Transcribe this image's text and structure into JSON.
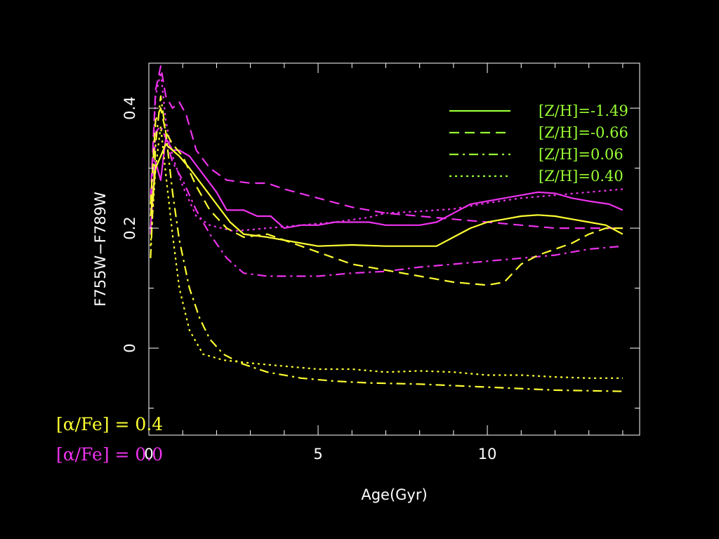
{
  "chart_data": {
    "type": "line",
    "title": "",
    "xlabel": "Age(Gyr)",
    "ylabel": "F755W−F789W",
    "xlim": [
      0,
      14.5
    ],
    "ylim": [
      -0.145,
      0.475
    ],
    "x_ticks": [
      {
        "value": 0,
        "label": "0"
      },
      {
        "value": 5,
        "label": "5"
      },
      {
        "value": 10,
        "label": "10"
      }
    ],
    "y_ticks": [
      {
        "value": 0,
        "label": "0"
      },
      {
        "value": 0.2,
        "label": "0.2"
      },
      {
        "value": 0.4,
        "label": "0.4"
      }
    ],
    "grid": false,
    "legend_position": "top-right",
    "legend": [
      {
        "label": "[Z/H]=-1.49",
        "dash": "solid"
      },
      {
        "label": "[Z/H]=-0.66",
        "dash": "dashed"
      },
      {
        "label": "[Z/H]=0.06",
        "dash": "dashdot"
      },
      {
        "label": "[Z/H]=0.40",
        "dash": "dotted"
      }
    ],
    "legend_color": "#99ff33",
    "alpha_groups": [
      {
        "label": "[α/Fe] = 0.4",
        "color": "#ffff33"
      },
      {
        "label": "[α/Fe] = 0.0",
        "color": "#ee33ee"
      }
    ],
    "series": [
      {
        "alpha_fe": 0.0,
        "z_h": -1.49,
        "dash": "solid",
        "color": "#ee33ee",
        "points": [
          [
            0.05,
            0.2
          ],
          [
            0.2,
            0.31
          ],
          [
            0.35,
            0.28
          ],
          [
            0.5,
            0.35
          ],
          [
            0.7,
            0.33
          ],
          [
            0.9,
            0.33
          ],
          [
            1.2,
            0.32
          ],
          [
            1.6,
            0.29
          ],
          [
            2.0,
            0.26
          ],
          [
            2.3,
            0.23
          ],
          [
            2.6,
            0.23
          ],
          [
            2.8,
            0.23
          ],
          [
            3.2,
            0.22
          ],
          [
            3.6,
            0.22
          ],
          [
            4.0,
            0.2
          ],
          [
            4.5,
            0.205
          ],
          [
            5.0,
            0.205
          ],
          [
            5.5,
            0.21
          ],
          [
            6.0,
            0.21
          ],
          [
            6.5,
            0.21
          ],
          [
            7.0,
            0.205
          ],
          [
            8.0,
            0.205
          ],
          [
            8.5,
            0.21
          ],
          [
            9.0,
            0.225
          ],
          [
            9.5,
            0.24
          ],
          [
            10.0,
            0.245
          ],
          [
            10.5,
            0.25
          ],
          [
            11.0,
            0.255
          ],
          [
            11.5,
            0.26
          ],
          [
            12.0,
            0.258
          ],
          [
            12.5,
            0.25
          ],
          [
            13.0,
            0.245
          ],
          [
            13.6,
            0.24
          ],
          [
            14.0,
            0.23
          ]
        ]
      },
      {
        "alpha_fe": 0.0,
        "z_h": -0.66,
        "dash": "dashed",
        "color": "#ee33ee",
        "points": [
          [
            0.05,
            0.25
          ],
          [
            0.2,
            0.43
          ],
          [
            0.35,
            0.47
          ],
          [
            0.5,
            0.42
          ],
          [
            0.7,
            0.4
          ],
          [
            0.9,
            0.41
          ],
          [
            1.1,
            0.39
          ],
          [
            1.4,
            0.33
          ],
          [
            1.8,
            0.3
          ],
          [
            2.3,
            0.28
          ],
          [
            3.0,
            0.275
          ],
          [
            3.5,
            0.275
          ],
          [
            4.0,
            0.265
          ],
          [
            5.0,
            0.25
          ],
          [
            6.0,
            0.235
          ],
          [
            7.0,
            0.225
          ],
          [
            8.0,
            0.22
          ],
          [
            9.0,
            0.215
          ],
          [
            10.0,
            0.21
          ],
          [
            11.0,
            0.205
          ],
          [
            12.0,
            0.2
          ],
          [
            13.0,
            0.2
          ],
          [
            14.0,
            0.2
          ]
        ]
      },
      {
        "alpha_fe": 0.0,
        "z_h": 0.06,
        "dash": "dashdot",
        "color": "#ee33ee",
        "points": [
          [
            0.05,
            0.19
          ],
          [
            0.2,
            0.36
          ],
          [
            0.35,
            0.37
          ],
          [
            0.5,
            0.35
          ],
          [
            0.7,
            0.31
          ],
          [
            1.0,
            0.28
          ],
          [
            1.4,
            0.23
          ],
          [
            1.8,
            0.19
          ],
          [
            2.3,
            0.15
          ],
          [
            2.8,
            0.125
          ],
          [
            3.5,
            0.12
          ],
          [
            4.0,
            0.12
          ],
          [
            5.0,
            0.12
          ],
          [
            6.0,
            0.125
          ],
          [
            7.0,
            0.128
          ],
          [
            8.0,
            0.135
          ],
          [
            9.0,
            0.14
          ],
          [
            10.0,
            0.145
          ],
          [
            11.0,
            0.15
          ],
          [
            12.0,
            0.155
          ],
          [
            13.0,
            0.165
          ],
          [
            14.0,
            0.17
          ]
        ]
      },
      {
        "alpha_fe": 0.0,
        "z_h": 0.4,
        "dash": "dotted",
        "color": "#ee33ee",
        "points": [
          [
            0.05,
            0.23
          ],
          [
            0.2,
            0.42
          ],
          [
            0.35,
            0.46
          ],
          [
            0.5,
            0.38
          ],
          [
            0.7,
            0.32
          ],
          [
            1.0,
            0.27
          ],
          [
            1.4,
            0.22
          ],
          [
            1.8,
            0.205
          ],
          [
            2.5,
            0.195
          ],
          [
            3.5,
            0.2
          ],
          [
            4.5,
            0.205
          ],
          [
            5.5,
            0.21
          ],
          [
            6.5,
            0.218
          ],
          [
            7.0,
            0.225
          ],
          [
            8.0,
            0.228
          ],
          [
            9.0,
            0.232
          ],
          [
            10.0,
            0.242
          ],
          [
            11.0,
            0.25
          ],
          [
            12.0,
            0.255
          ],
          [
            13.0,
            0.26
          ],
          [
            14.0,
            0.265
          ]
        ]
      },
      {
        "alpha_fe": 0.4,
        "z_h": -1.49,
        "dash": "solid",
        "color": "#ffff33",
        "points": [
          [
            0.05,
            0.22
          ],
          [
            0.2,
            0.3
          ],
          [
            0.35,
            0.32
          ],
          [
            0.5,
            0.34
          ],
          [
            0.7,
            0.33
          ],
          [
            0.9,
            0.32
          ],
          [
            1.2,
            0.3
          ],
          [
            1.6,
            0.27
          ],
          [
            2.0,
            0.24
          ],
          [
            2.4,
            0.21
          ],
          [
            2.8,
            0.19
          ],
          [
            3.5,
            0.185
          ],
          [
            4.0,
            0.18
          ],
          [
            4.5,
            0.175
          ],
          [
            5.0,
            0.17
          ],
          [
            6.0,
            0.172
          ],
          [
            7.0,
            0.17
          ],
          [
            8.5,
            0.17
          ],
          [
            9.0,
            0.185
          ],
          [
            9.5,
            0.2
          ],
          [
            10.0,
            0.21
          ],
          [
            10.5,
            0.215
          ],
          [
            11.0,
            0.22
          ],
          [
            11.5,
            0.222
          ],
          [
            12.0,
            0.22
          ],
          [
            12.5,
            0.215
          ],
          [
            13.0,
            0.21
          ],
          [
            13.5,
            0.205
          ],
          [
            14.0,
            0.19
          ]
        ]
      },
      {
        "alpha_fe": 0.4,
        "z_h": -0.66,
        "dash": "dashed",
        "color": "#ffff33",
        "points": [
          [
            0.05,
            0.24
          ],
          [
            0.2,
            0.38
          ],
          [
            0.35,
            0.4
          ],
          [
            0.5,
            0.36
          ],
          [
            0.7,
            0.34
          ],
          [
            1.0,
            0.32
          ],
          [
            1.4,
            0.27
          ],
          [
            1.8,
            0.23
          ],
          [
            2.3,
            0.2
          ],
          [
            2.8,
            0.185
          ],
          [
            3.5,
            0.19
          ],
          [
            4.0,
            0.18
          ],
          [
            5.0,
            0.16
          ],
          [
            6.0,
            0.14
          ],
          [
            7.0,
            0.13
          ],
          [
            8.0,
            0.12
          ],
          [
            9.0,
            0.11
          ],
          [
            10.0,
            0.105
          ],
          [
            10.5,
            0.11
          ],
          [
            11.0,
            0.14
          ],
          [
            11.5,
            0.155
          ],
          [
            12.0,
            0.165
          ],
          [
            12.5,
            0.175
          ],
          [
            13.0,
            0.19
          ],
          [
            13.5,
            0.2
          ],
          [
            14.0,
            0.2
          ]
        ]
      },
      {
        "alpha_fe": 0.4,
        "z_h": 0.06,
        "dash": "dashdot",
        "color": "#ffff33",
        "points": [
          [
            0.05,
            0.15
          ],
          [
            0.2,
            0.34
          ],
          [
            0.35,
            0.42
          ],
          [
            0.5,
            0.36
          ],
          [
            0.7,
            0.26
          ],
          [
            0.9,
            0.18
          ],
          [
            1.2,
            0.1
          ],
          [
            1.5,
            0.05
          ],
          [
            1.8,
            0.015
          ],
          [
            2.2,
            -0.01
          ],
          [
            2.7,
            -0.025
          ],
          [
            3.5,
            -0.04
          ],
          [
            4.5,
            -0.05
          ],
          [
            5.5,
            -0.055
          ],
          [
            6.5,
            -0.058
          ],
          [
            8.0,
            -0.06
          ],
          [
            10.0,
            -0.065
          ],
          [
            12.0,
            -0.07
          ],
          [
            14.0,
            -0.072
          ]
        ]
      },
      {
        "alpha_fe": 0.4,
        "z_h": 0.4,
        "dash": "dotted",
        "color": "#ffff33",
        "points": [
          [
            0.05,
            0.17
          ],
          [
            0.2,
            0.3
          ],
          [
            0.35,
            0.37
          ],
          [
            0.5,
            0.29
          ],
          [
            0.7,
            0.19
          ],
          [
            0.9,
            0.1
          ],
          [
            1.2,
            0.03
          ],
          [
            1.6,
            -0.01
          ],
          [
            2.2,
            -0.02
          ],
          [
            3.0,
            -0.025
          ],
          [
            4.0,
            -0.03
          ],
          [
            5.0,
            -0.035
          ],
          [
            6.0,
            -0.035
          ],
          [
            7.0,
            -0.04
          ],
          [
            8.0,
            -0.038
          ],
          [
            9.0,
            -0.04
          ],
          [
            10.0,
            -0.045
          ],
          [
            11.0,
            -0.045
          ],
          [
            12.0,
            -0.048
          ],
          [
            13.0,
            -0.05
          ],
          [
            14.0,
            -0.05
          ]
        ]
      }
    ]
  }
}
